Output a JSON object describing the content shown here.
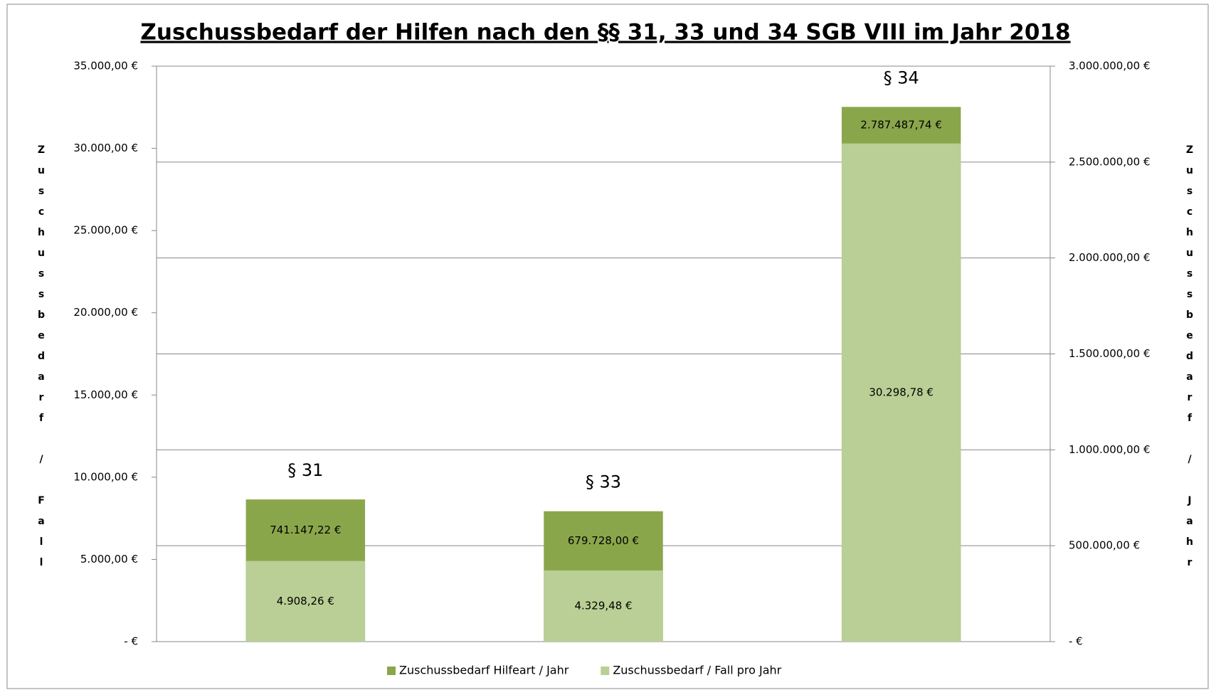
{
  "chart_data": {
    "type": "bar",
    "title": "Zuschussbedarf der Hilfen nach den §§ 31, 33 und 34 SGB VIII im Jahr 2018",
    "ylabel": "Zuschussbedarf / Fall",
    "y2label": "Zuschussbedarf / Jahr",
    "categories": [
      "§ 31",
      "§ 33",
      "§ 34"
    ],
    "series": [
      {
        "name": "Zuschussbedarf Hilfeart / Jahr",
        "color": "#8aa64b",
        "axis": "y2",
        "values": [
          741147.22,
          679728.0,
          2787487.74
        ],
        "value_labels": [
          "741.147,22 €",
          "679.728,00 €",
          "2.787.487,74 €"
        ]
      },
      {
        "name": "Zuschussbedarf / Fall pro Jahr",
        "color": "#b9cf95",
        "values": [
          4908.26,
          4329.48,
          30298.78
        ],
        "value_labels": [
          "4.908,26 €",
          "4.329,48 €",
          "30.298,78 €"
        ]
      }
    ],
    "ylim": [
      0,
      35000
    ],
    "yticks": [
      {
        "value": 0,
        "label": "- €"
      },
      {
        "value": 5000,
        "label": "5.000,00 €"
      },
      {
        "value": 10000,
        "label": "10.000,00 €"
      },
      {
        "value": 15000,
        "label": "15.000,00 €"
      },
      {
        "value": 20000,
        "label": "20.000,00 €"
      },
      {
        "value": 25000,
        "label": "25.000,00 €"
      },
      {
        "value": 30000,
        "label": "30.000,00 €"
      },
      {
        "value": 35000,
        "label": "35.000,00 €"
      }
    ],
    "y2lim": [
      0,
      3000000
    ],
    "y2ticks": [
      {
        "value": 0,
        "label": "- €"
      },
      {
        "value": 500000,
        "label": "500.000,00 €"
      },
      {
        "value": 1000000,
        "label": "1.000.000,00 €"
      },
      {
        "value": 1500000,
        "label": "1.500.000,00 €"
      },
      {
        "value": 2000000,
        "label": "2.000.000,00 €"
      },
      {
        "value": 2500000,
        "label": "2.500.000,00 €"
      },
      {
        "value": 3000000,
        "label": "3.000.000,00 €"
      }
    ],
    "grid": "y2",
    "legend": "bottom"
  }
}
